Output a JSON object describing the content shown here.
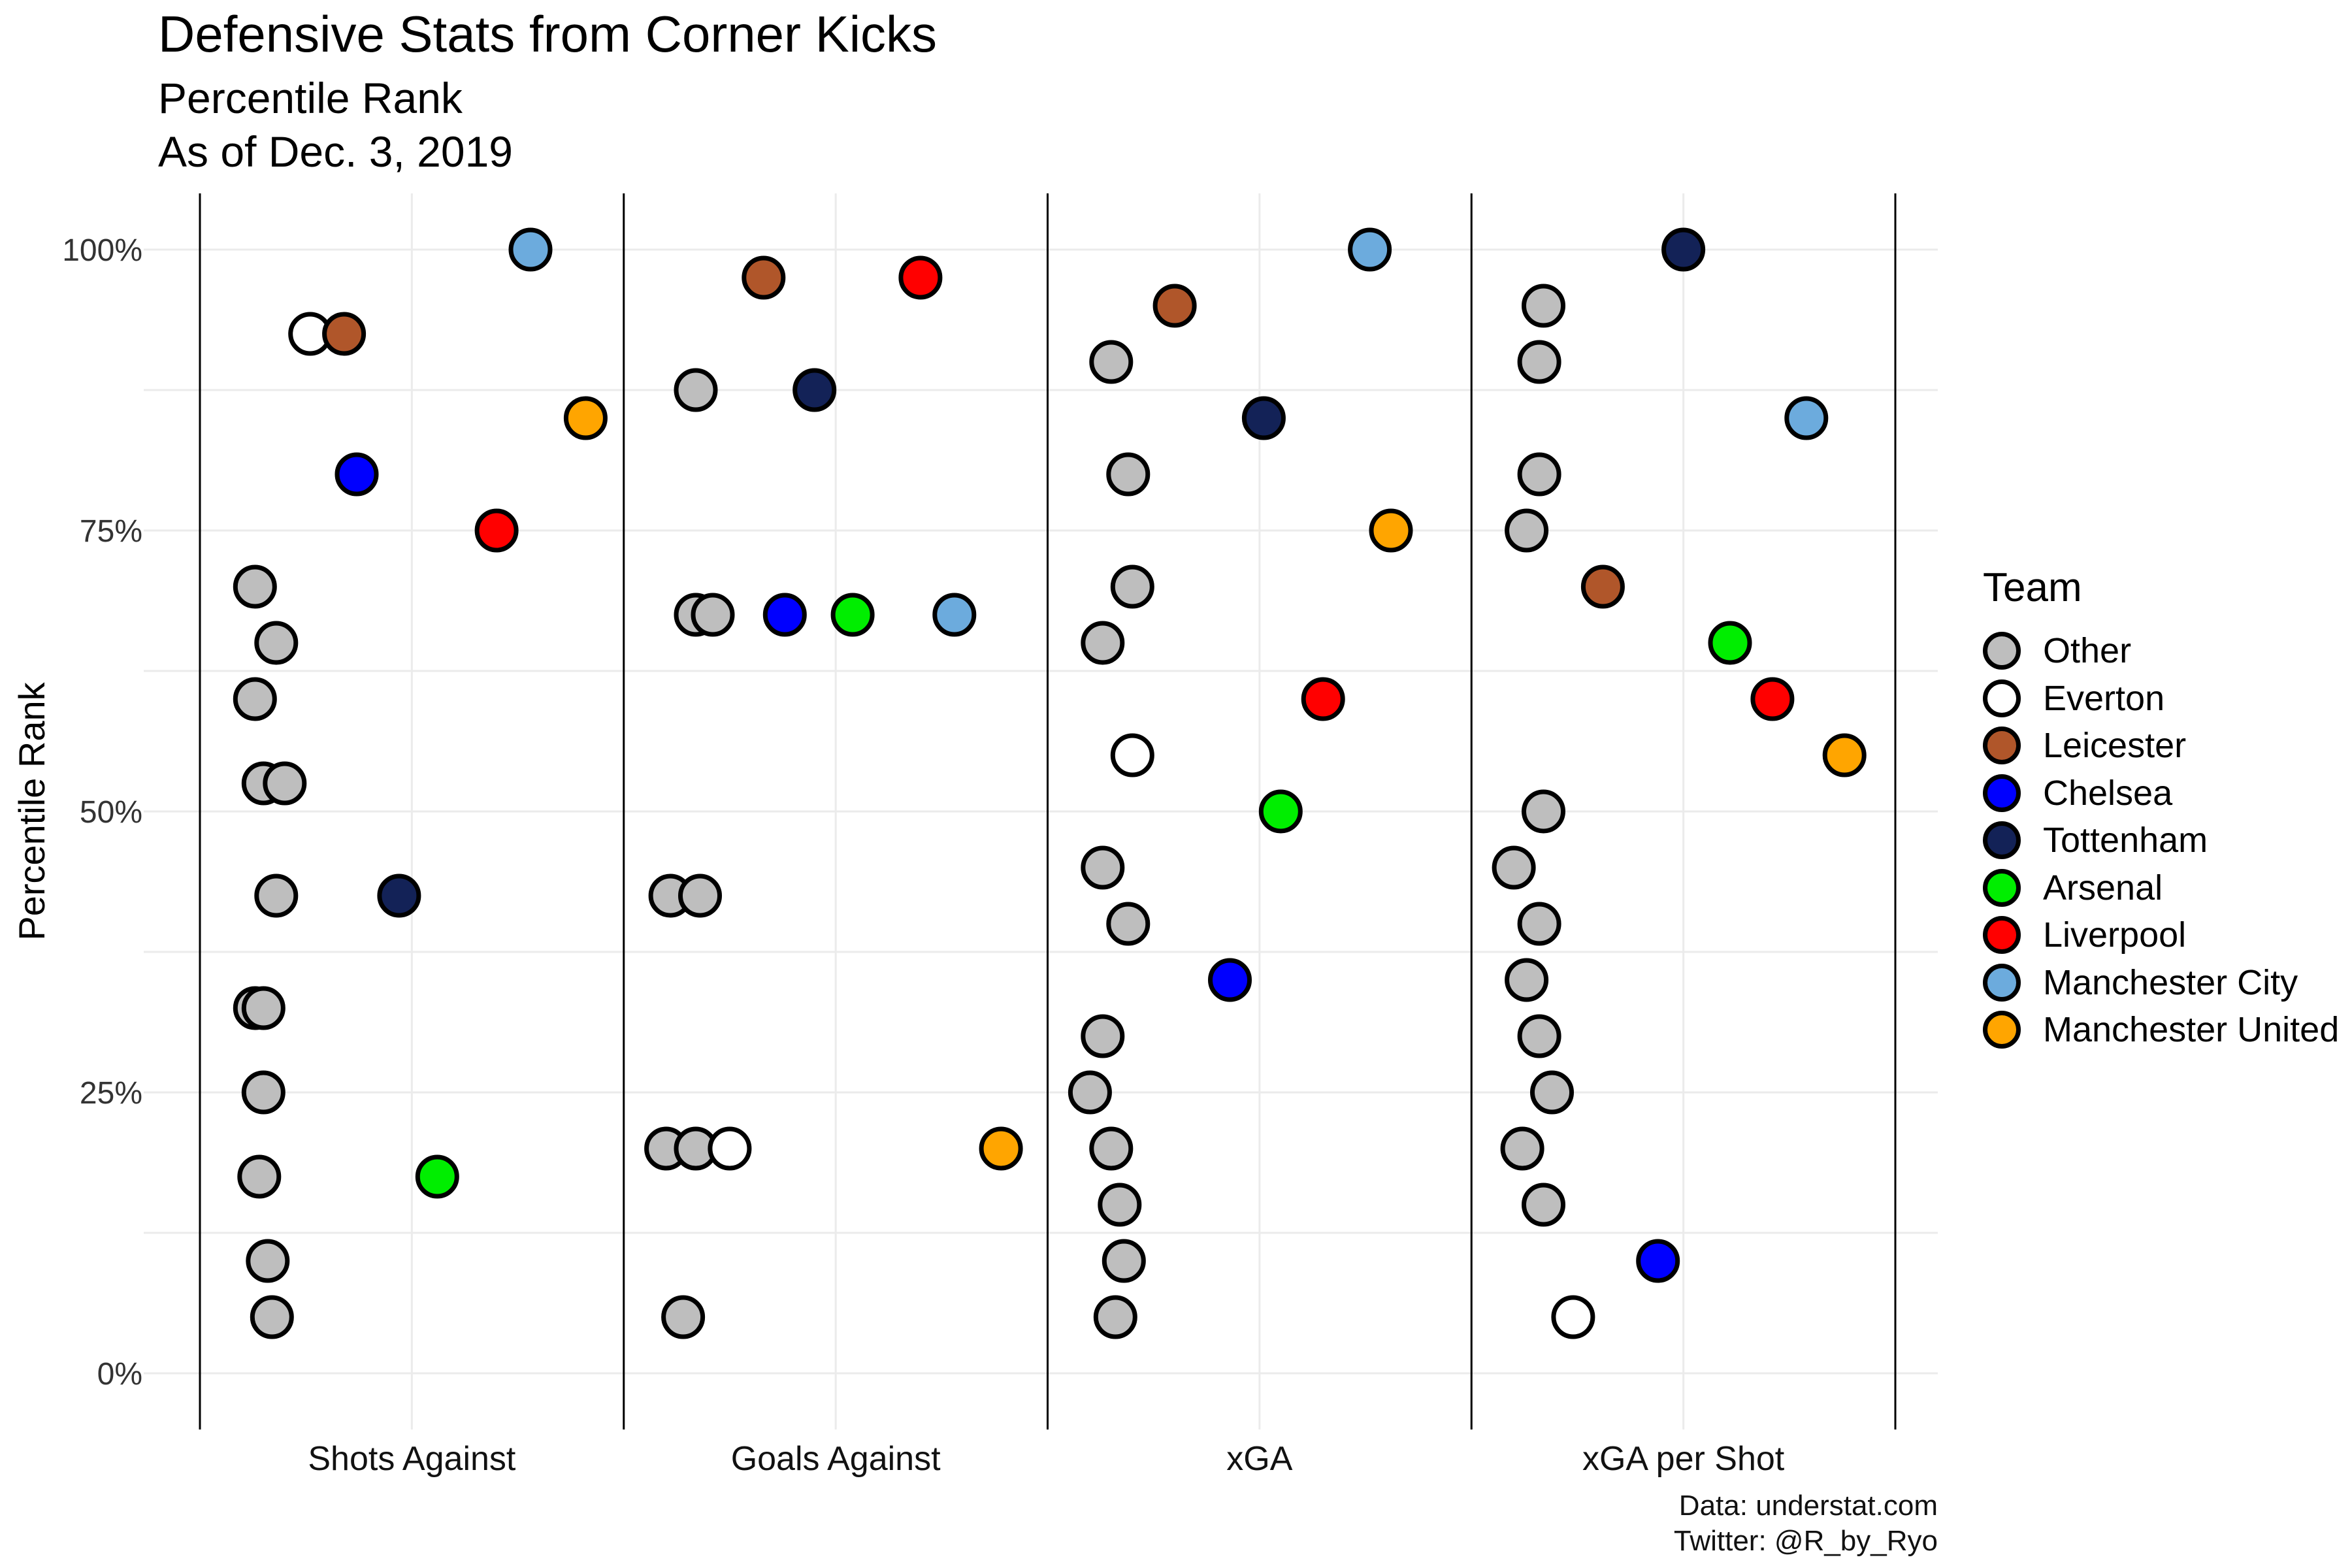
{
  "title": "Defensive Stats from Corner Kicks",
  "subtitle": "Percentile Rank",
  "date_line": "As of Dec. 3, 2019",
  "caption_line1": "Data: understat.com",
  "caption_line2": "Twitter: @R_by_Ryo",
  "legend": {
    "title": "Team",
    "items": [
      {
        "label": "Other",
        "color": "#BEBEBE"
      },
      {
        "label": "Everton",
        "color": "#FFFFFF"
      },
      {
        "label": "Leicester",
        "color": "#B0562A"
      },
      {
        "label": "Chelsea",
        "color": "#0000FF"
      },
      {
        "label": "Tottenham",
        "color": "#132257"
      },
      {
        "label": "Arsenal",
        "color": "#00EE00"
      },
      {
        "label": "Liverpool",
        "color": "#FF0000"
      },
      {
        "label": "Manchester City",
        "color": "#6CABDD"
      },
      {
        "label": "Manchester United",
        "color": "#FFA500"
      }
    ]
  },
  "chart_data": {
    "type": "scatter",
    "title": "Defensive Stats from Corner Kicks",
    "ylabel": "Percentile Rank",
    "ylim": [
      0,
      1
    ],
    "ytick_labels": [
      "0%",
      "25%",
      "50%",
      "75%",
      "100%"
    ],
    "yticks": [
      0,
      0.25,
      0.5,
      0.75,
      1.0
    ],
    "categories": [
      "Shots Against",
      "Goals Against",
      "xGA",
      "xGA per Shot"
    ],
    "grid": true,
    "legend_position": "right",
    "series": [
      {
        "name": "Other",
        "color": "#BEBEBE",
        "points": [
          {
            "category": "Shots Against",
            "offset": -0.37,
            "y": 0.7
          },
          {
            "category": "Shots Against",
            "offset": -0.32,
            "y": 0.65
          },
          {
            "category": "Shots Against",
            "offset": -0.37,
            "y": 0.6
          },
          {
            "category": "Shots Against",
            "offset": -0.35,
            "y": 0.525
          },
          {
            "category": "Shots Against",
            "offset": -0.3,
            "y": 0.525
          },
          {
            "category": "Shots Against",
            "offset": -0.32,
            "y": 0.425
          },
          {
            "category": "Shots Against",
            "offset": -0.37,
            "y": 0.325
          },
          {
            "category": "Shots Against",
            "offset": -0.35,
            "y": 0.325
          },
          {
            "category": "Shots Against",
            "offset": -0.35,
            "y": 0.25
          },
          {
            "category": "Shots Against",
            "offset": -0.36,
            "y": 0.175
          },
          {
            "category": "Shots Against",
            "offset": -0.34,
            "y": 0.1
          },
          {
            "category": "Shots Against",
            "offset": -0.33,
            "y": 0.05
          },
          {
            "category": "Goals Against",
            "offset": -0.33,
            "y": 0.875
          },
          {
            "category": "Goals Against",
            "offset": -0.33,
            "y": 0.675
          },
          {
            "category": "Goals Against",
            "offset": -0.29,
            "y": 0.675
          },
          {
            "category": "Goals Against",
            "offset": -0.39,
            "y": 0.425
          },
          {
            "category": "Goals Against",
            "offset": -0.32,
            "y": 0.425
          },
          {
            "category": "Goals Against",
            "offset": -0.4,
            "y": 0.2
          },
          {
            "category": "Goals Against",
            "offset": -0.33,
            "y": 0.2
          },
          {
            "category": "Goals Against",
            "offset": -0.36,
            "y": 0.05
          },
          {
            "category": "xGA",
            "offset": -0.35,
            "y": 0.9
          },
          {
            "category": "xGA",
            "offset": -0.31,
            "y": 0.8
          },
          {
            "category": "xGA",
            "offset": -0.3,
            "y": 0.7
          },
          {
            "category": "xGA",
            "offset": -0.37,
            "y": 0.65
          },
          {
            "category": "xGA",
            "offset": -0.37,
            "y": 0.45
          },
          {
            "category": "xGA",
            "offset": -0.31,
            "y": 0.4
          },
          {
            "category": "xGA",
            "offset": -0.37,
            "y": 0.3
          },
          {
            "category": "xGA",
            "offset": -0.4,
            "y": 0.25
          },
          {
            "category": "xGA",
            "offset": -0.35,
            "y": 0.2
          },
          {
            "category": "xGA",
            "offset": -0.33,
            "y": 0.15
          },
          {
            "category": "xGA",
            "offset": -0.32,
            "y": 0.1
          },
          {
            "category": "xGA",
            "offset": -0.34,
            "y": 0.05
          },
          {
            "category": "xGA per Shot",
            "offset": -0.33,
            "y": 0.95
          },
          {
            "category": "xGA per Shot",
            "offset": -0.34,
            "y": 0.9
          },
          {
            "category": "xGA per Shot",
            "offset": -0.34,
            "y": 0.8
          },
          {
            "category": "xGA per Shot",
            "offset": -0.37,
            "y": 0.75
          },
          {
            "category": "xGA per Shot",
            "offset": -0.33,
            "y": 0.5
          },
          {
            "category": "xGA per Shot",
            "offset": -0.4,
            "y": 0.45
          },
          {
            "category": "xGA per Shot",
            "offset": -0.34,
            "y": 0.4
          },
          {
            "category": "xGA per Shot",
            "offset": -0.37,
            "y": 0.35
          },
          {
            "category": "xGA per Shot",
            "offset": -0.34,
            "y": 0.3
          },
          {
            "category": "xGA per Shot",
            "offset": -0.31,
            "y": 0.25
          },
          {
            "category": "xGA per Shot",
            "offset": -0.38,
            "y": 0.2
          },
          {
            "category": "xGA per Shot",
            "offset": -0.33,
            "y": 0.15
          }
        ]
      },
      {
        "name": "Everton",
        "color": "#FFFFFF",
        "points": [
          {
            "category": "Shots Against",
            "offset": -0.24,
            "y": 0.925
          },
          {
            "category": "Goals Against",
            "offset": -0.25,
            "y": 0.2
          },
          {
            "category": "xGA",
            "offset": -0.3,
            "y": 0.55
          },
          {
            "category": "xGA per Shot",
            "offset": -0.26,
            "y": 0.05
          }
        ]
      },
      {
        "name": "Leicester",
        "color": "#B0562A",
        "points": [
          {
            "category": "Shots Against",
            "offset": -0.16,
            "y": 0.925
          },
          {
            "category": "Goals Against",
            "offset": -0.17,
            "y": 0.975
          },
          {
            "category": "xGA",
            "offset": -0.2,
            "y": 0.95
          },
          {
            "category": "xGA per Shot",
            "offset": -0.19,
            "y": 0.7
          }
        ]
      },
      {
        "name": "Chelsea",
        "color": "#0000FF",
        "points": [
          {
            "category": "Shots Against",
            "offset": -0.13,
            "y": 0.8
          },
          {
            "category": "Goals Against",
            "offset": -0.12,
            "y": 0.675
          },
          {
            "category": "xGA",
            "offset": -0.07,
            "y": 0.35
          },
          {
            "category": "xGA per Shot",
            "offset": -0.06,
            "y": 0.1
          }
        ]
      },
      {
        "name": "Tottenham",
        "color": "#132257",
        "points": [
          {
            "category": "Shots Against",
            "offset": -0.03,
            "y": 0.425
          },
          {
            "category": "Goals Against",
            "offset": -0.05,
            "y": 0.875
          },
          {
            "category": "xGA",
            "offset": 0.01,
            "y": 0.85
          },
          {
            "category": "xGA per Shot",
            "offset": 0.0,
            "y": 1.0
          }
        ]
      },
      {
        "name": "Arsenal",
        "color": "#00EE00",
        "points": [
          {
            "category": "Shots Against",
            "offset": 0.06,
            "y": 0.175
          },
          {
            "category": "Goals Against",
            "offset": 0.04,
            "y": 0.675
          },
          {
            "category": "xGA",
            "offset": 0.05,
            "y": 0.5
          },
          {
            "category": "xGA per Shot",
            "offset": 0.11,
            "y": 0.65
          }
        ]
      },
      {
        "name": "Liverpool",
        "color": "#FF0000",
        "points": [
          {
            "category": "Shots Against",
            "offset": 0.2,
            "y": 0.75
          },
          {
            "category": "Goals Against",
            "offset": 0.2,
            "y": 0.975
          },
          {
            "category": "xGA",
            "offset": 0.15,
            "y": 0.6
          },
          {
            "category": "xGA per Shot",
            "offset": 0.21,
            "y": 0.6
          }
        ]
      },
      {
        "name": "Manchester City",
        "color": "#6CABDD",
        "points": [
          {
            "category": "Shots Against",
            "offset": 0.28,
            "y": 1.0
          },
          {
            "category": "Goals Against",
            "offset": 0.28,
            "y": 0.675
          },
          {
            "category": "xGA",
            "offset": 0.26,
            "y": 1.0
          },
          {
            "category": "xGA per Shot",
            "offset": 0.29,
            "y": 0.85
          }
        ]
      },
      {
        "name": "Manchester United",
        "color": "#FFA500",
        "points": [
          {
            "category": "Shots Against",
            "offset": 0.41,
            "y": 0.85
          },
          {
            "category": "Goals Against",
            "offset": 0.39,
            "y": 0.2
          },
          {
            "category": "xGA",
            "offset": 0.31,
            "y": 0.75
          },
          {
            "category": "xGA per Shot",
            "offset": 0.38,
            "y": 0.55
          }
        ]
      }
    ]
  }
}
